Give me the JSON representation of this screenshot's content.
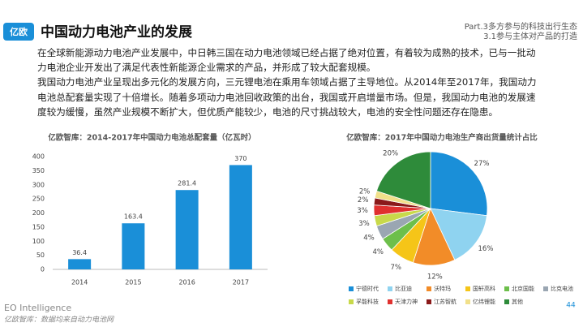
{
  "header": {
    "logo": "亿欧",
    "title": "中国动力电池产业的发展",
    "part": "Part.3多方参与的科技出行生态",
    "section": "3.1参与主体对产品的打造"
  },
  "paragraphs": [
    "在全球新能源动力电池产业发展中，中日韩三国在动力电池领域已经占据了绝对位置，有着较为成熟的技术，已与一批动力电池企业开发出了满足代表性新能源企业需求的产品，并形成了较大配套规模。",
    "我国动力电池产业呈现出多元化的发展方向，三元锂电池在乘用车领域占据了主导地位。从2014年至2017年，我国动力电池总配套量实现了十倍增长。随着多项动力电池回收政策的出台，我国或开启增量市场。但是，我国动力电池的发展速度较为缓慢，虽然产业规模不断扩大，但优质产能较少，电池的尺寸挑战较大，电池的安全性问题还存在隐患。"
  ],
  "chart_data": [
    {
      "type": "bar",
      "title": "亿欧智库：2014-2017年中国动力电池总配套量（亿瓦时）",
      "categories": [
        "2014",
        "2015",
        "2016",
        "2017"
      ],
      "values": [
        36.4,
        163.4,
        281.4,
        370
      ],
      "color": "#1a8fd8",
      "ylim": [
        0,
        400
      ],
      "yticks": [
        0,
        50,
        100,
        150,
        200,
        250,
        300,
        350,
        400
      ],
      "grid": false
    },
    {
      "type": "pie",
      "title": "亿欧智库：2017年中国动力电池生产商出货量统计占比",
      "categories": [
        "宁德时代",
        "比亚迪",
        "沃特玛",
        "国轩高科",
        "北京国能",
        "比克电池",
        "孚能科技",
        "天津力神",
        "江苏智航",
        "亿纬锂能",
        "其他"
      ],
      "values": [
        27,
        16,
        12,
        7,
        4,
        4,
        3,
        3,
        2,
        2,
        20
      ],
      "value_labels": [
        "27%",
        "16%",
        "12%",
        "7%",
        "4%",
        "4%",
        "3%",
        "3%",
        "2%",
        "2%",
        "20%"
      ],
      "colors": [
        "#1a8fd8",
        "#8fd3f0",
        "#f28c28",
        "#f5c518",
        "#6dbf4b",
        "#9aa6b2",
        "#c8d94a",
        "#e0312f",
        "#8b1a1a",
        "#f1e08a",
        "#2e8b3a"
      ]
    }
  ],
  "footer": {
    "brand": "EO Intelligence",
    "source": "亿欧智库：数据均来自动力电池网",
    "page": "44"
  }
}
